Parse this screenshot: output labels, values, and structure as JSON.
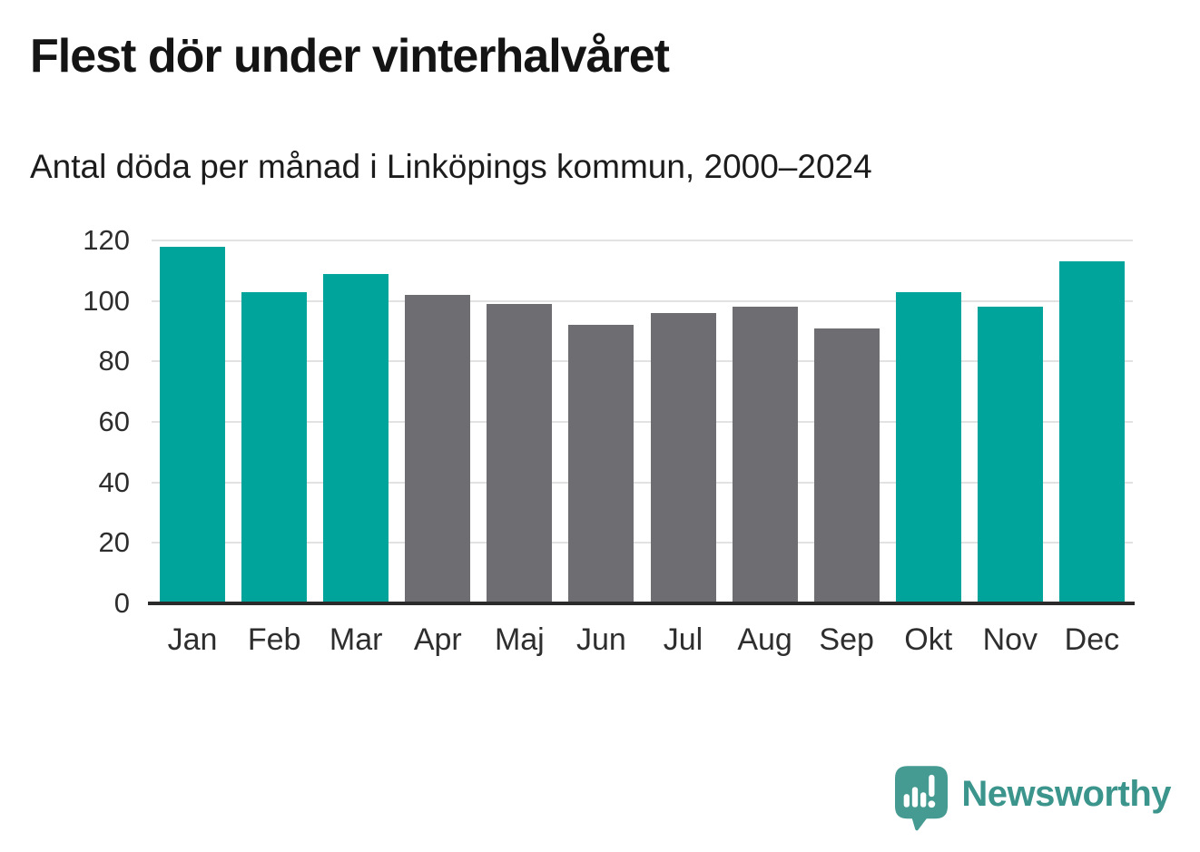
{
  "chart_data": {
    "type": "bar",
    "title": "Flest dör under vinterhalvåret",
    "subtitle": "Antal döda per månad i Linköpings kommun, 2000–2024",
    "categories": [
      "Jan",
      "Feb",
      "Mar",
      "Apr",
      "Maj",
      "Jun",
      "Jul",
      "Aug",
      "Sep",
      "Okt",
      "Nov",
      "Dec"
    ],
    "values": [
      118,
      103,
      109,
      102,
      99,
      92,
      96,
      98,
      91,
      103,
      98,
      113
    ],
    "bar_groups": [
      "winter",
      "winter",
      "winter",
      "summer",
      "summer",
      "summer",
      "summer",
      "summer",
      "summer",
      "winter",
      "winter",
      "winter"
    ],
    "colors": {
      "winter": "#00a49a",
      "summer": "#6e6e72"
    },
    "xlabel": "",
    "ylabel": "",
    "ylim": [
      0,
      120
    ],
    "yticks": [
      0,
      20,
      40,
      60,
      80,
      100,
      120
    ],
    "grid": "horizontal",
    "grid_color": "#e2e2e2",
    "axis_line_color": "#2b2b2b",
    "tick_label_color": "#2d2d2d",
    "legend": "none",
    "data_labels": "none"
  },
  "footer": {
    "brand": "Newsworthy",
    "logo_color": "#459a92",
    "wordmark_color": "#3b958c"
  }
}
